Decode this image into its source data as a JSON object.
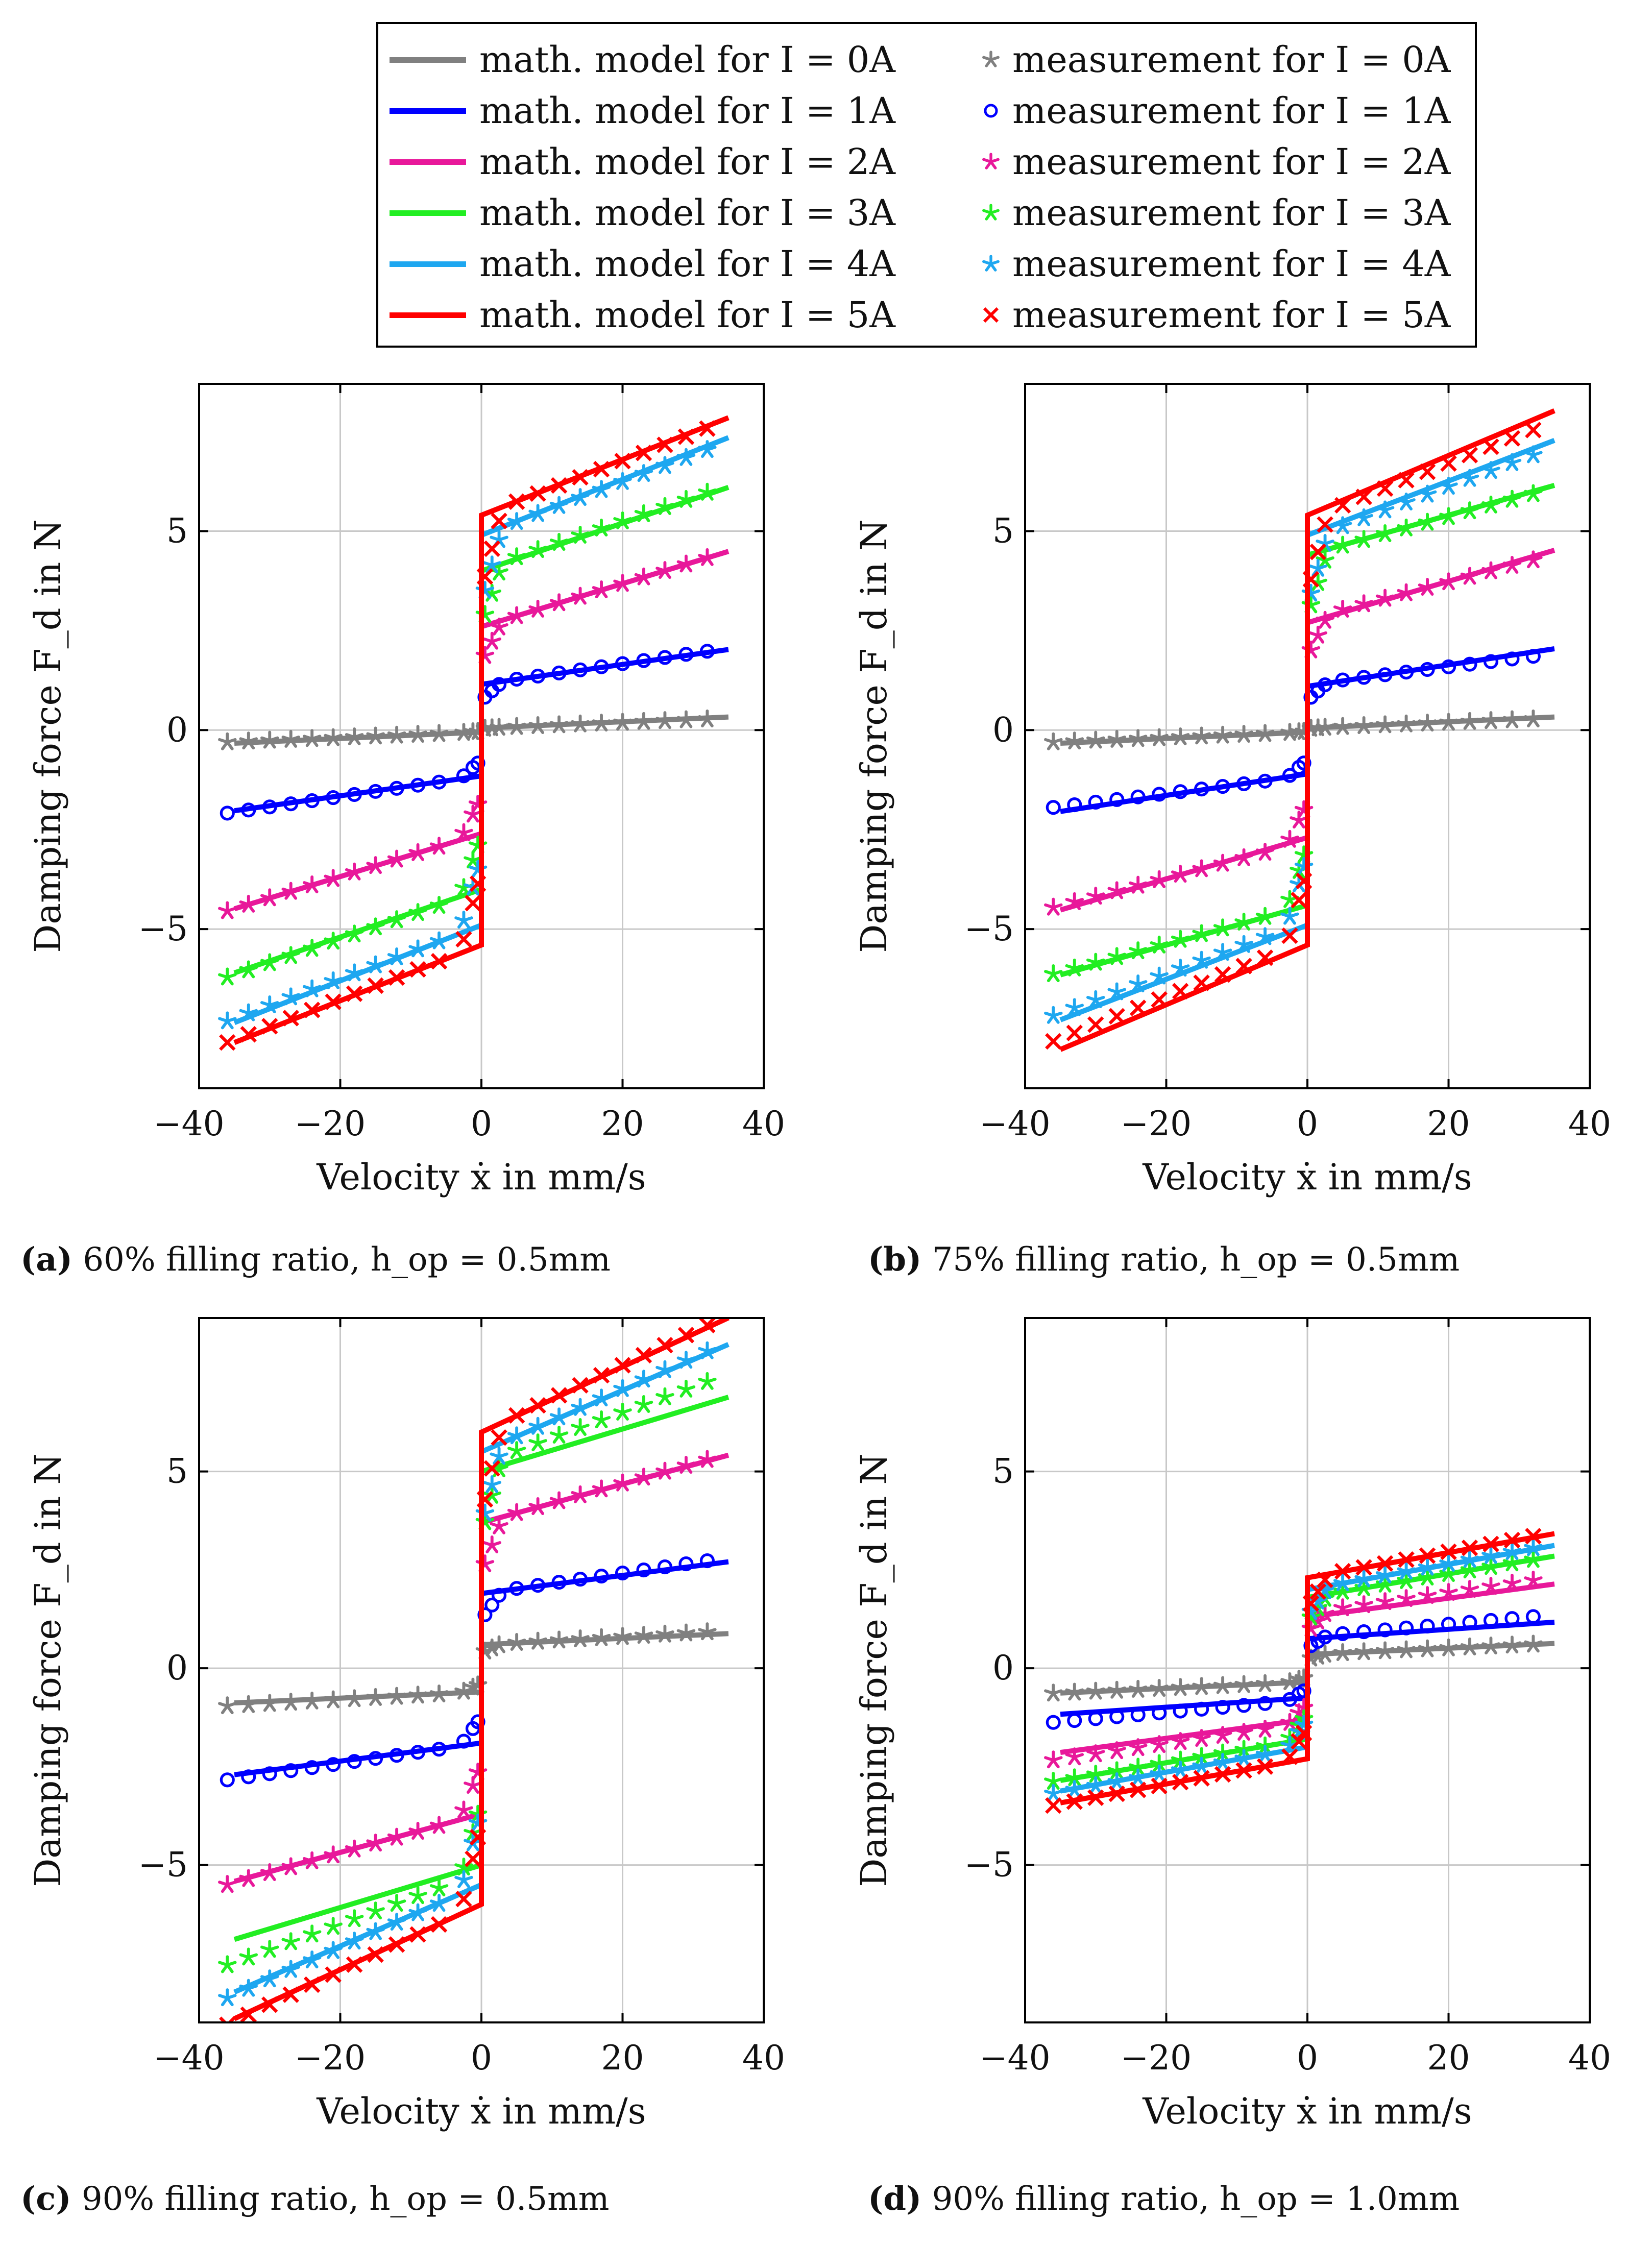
{
  "legend": {
    "entries": [
      {
        "model_label": "math. model for I = 0A",
        "meas_label": "measurement for I = 0A",
        "color": "#808080",
        "marker": "star"
      },
      {
        "model_label": "math. model for I = 1A",
        "meas_label": "measurement for I = 1A",
        "color": "#0000ff",
        "marker": "circle"
      },
      {
        "model_label": "math. model for I = 2A",
        "meas_label": "measurement for I = 2A",
        "color": "#e8189a",
        "marker": "star"
      },
      {
        "model_label": "math. model for I = 3A",
        "meas_label": "measurement for I = 3A",
        "color": "#22ee22",
        "marker": "star"
      },
      {
        "model_label": "math. model for I = 4A",
        "meas_label": "measurement for I = 4A",
        "color": "#1ea7f0",
        "marker": "star"
      },
      {
        "model_label": "math. model for I = 5A",
        "meas_label": "measurement for I = 5A",
        "color": "#ff0000",
        "marker": "cross"
      }
    ]
  },
  "chart_data": [
    {
      "type": "line",
      "panel": "a",
      "caption_letter": "(a)",
      "caption": "60% filling ratio, h_op = 0.5mm",
      "xlabel": "Velocity ẋ in mm/s",
      "ylabel": "Damping force F_d in N",
      "xlim": [
        -40,
        40
      ],
      "ylim": [
        -9,
        8.7
      ],
      "xticks": [
        -40,
        -20,
        0,
        20,
        40
      ],
      "yticks": [
        -5,
        0,
        5
      ],
      "grid": true,
      "series": [
        {
          "name": "I = 0A",
          "current": 0,
          "model": {
            "offset": 0.05,
            "slope": 0.008
          },
          "measurement": {
            "offset": 0.05,
            "slope": 0.007
          }
        },
        {
          "name": "I = 1A",
          "current": 1,
          "model": {
            "offset": 1.15,
            "slope": 0.025
          },
          "measurement": {
            "offset": 1.15,
            "slope": 0.026
          }
        },
        {
          "name": "I = 2A",
          "current": 2,
          "model": {
            "offset": 2.6,
            "slope": 0.054
          },
          "measurement": {
            "offset": 2.6,
            "slope": 0.054
          }
        },
        {
          "name": "I = 3A",
          "current": 3,
          "model": {
            "offset": 4.0,
            "slope": 0.06
          },
          "measurement": {
            "offset": 4.05,
            "slope": 0.06
          }
        },
        {
          "name": "I = 4A",
          "current": 4,
          "model": {
            "offset": 4.9,
            "slope": 0.07
          },
          "measurement": {
            "offset": 4.9,
            "slope": 0.067
          }
        },
        {
          "name": "I = 5A",
          "current": 5,
          "model": {
            "offset": 5.4,
            "slope": 0.07
          },
          "measurement": {
            "offset": 5.4,
            "slope": 0.068
          }
        }
      ]
    },
    {
      "type": "line",
      "panel": "b",
      "caption_letter": "(b)",
      "caption": "75% filling ratio, h_op = 0.5mm",
      "xlabel": "Velocity ẋ in mm/s",
      "ylabel": "Damping force F_d in N",
      "xlim": [
        -40,
        40
      ],
      "ylim": [
        -9,
        8.7
      ],
      "xticks": [
        -40,
        -20,
        0,
        20,
        40
      ],
      "yticks": [
        -5,
        0,
        5
      ],
      "grid": true,
      "series": [
        {
          "name": "I = 0A",
          "current": 0,
          "model": {
            "offset": 0.05,
            "slope": 0.008
          },
          "measurement": {
            "offset": 0.05,
            "slope": 0.007
          }
        },
        {
          "name": "I = 1A",
          "current": 1,
          "model": {
            "offset": 1.1,
            "slope": 0.027
          },
          "measurement": {
            "offset": 1.15,
            "slope": 0.022
          }
        },
        {
          "name": "I = 2A",
          "current": 2,
          "model": {
            "offset": 2.7,
            "slope": 0.052
          },
          "measurement": {
            "offset": 2.8,
            "slope": 0.046
          }
        },
        {
          "name": "I = 3A",
          "current": 3,
          "model": {
            "offset": 4.4,
            "slope": 0.05
          },
          "measurement": {
            "offset": 4.4,
            "slope": 0.048
          }
        },
        {
          "name": "I = 4A",
          "current": 4,
          "model": {
            "offset": 4.9,
            "slope": 0.068
          },
          "measurement": {
            "offset": 4.8,
            "slope": 0.066
          }
        },
        {
          "name": "I = 5A",
          "current": 5,
          "model": {
            "offset": 5.4,
            "slope": 0.075
          },
          "measurement": {
            "offset": 5.3,
            "slope": 0.07
          }
        }
      ]
    },
    {
      "type": "line",
      "panel": "c",
      "caption_letter": "(c)",
      "caption": "90% filling ratio, h_op = 0.5mm",
      "xlabel": "Velocity ẋ in mm/s",
      "ylabel": "Damping force F_d in N",
      "xlim": [
        -40,
        40
      ],
      "ylim": [
        -9,
        8.9
      ],
      "xticks": [
        -40,
        -20,
        0,
        20,
        40
      ],
      "yticks": [
        -5,
        0,
        5
      ],
      "grid": true,
      "series": [
        {
          "name": "I = 0A",
          "current": 0,
          "model": {
            "offset": 0.6,
            "slope": 0.008
          },
          "measurement": {
            "offset": 0.6,
            "slope": 0.01
          }
        },
        {
          "name": "I = 1A",
          "current": 1,
          "model": {
            "offset": 1.9,
            "slope": 0.023
          },
          "measurement": {
            "offset": 1.9,
            "slope": 0.026
          }
        },
        {
          "name": "I = 2A",
          "current": 2,
          "model": {
            "offset": 3.7,
            "slope": 0.049
          },
          "measurement": {
            "offset": 3.7,
            "slope": 0.05
          }
        },
        {
          "name": "I = 3A",
          "current": 3,
          "model": {
            "offset": 5.0,
            "slope": 0.054
          },
          "measurement": {
            "offset": 5.2,
            "slope": 0.065
          }
        },
        {
          "name": "I = 4A",
          "current": 4,
          "model": {
            "offset": 5.5,
            "slope": 0.078
          },
          "measurement": {
            "offset": 5.5,
            "slope": 0.08
          }
        },
        {
          "name": "I = 5A",
          "current": 5,
          "model": {
            "offset": 6.0,
            "slope": 0.083
          },
          "measurement": {
            "offset": 6.0,
            "slope": 0.085
          }
        }
      ]
    },
    {
      "type": "line",
      "panel": "d",
      "caption_letter": "(d)",
      "caption": "90% filling ratio, h_op = 1.0mm",
      "xlabel": "Velocity ẋ in mm/s",
      "ylabel": "Damping force F_d in N",
      "xlim": [
        -40,
        40
      ],
      "ylim": [
        -9,
        8.9
      ],
      "xticks": [
        -40,
        -20,
        0,
        20,
        40
      ],
      "yticks": [
        -5,
        0,
        5
      ],
      "grid": true,
      "series": [
        {
          "name": "I = 0A",
          "current": 0,
          "model": {
            "offset": 0.35,
            "slope": 0.008
          },
          "measurement": {
            "offset": 0.35,
            "slope": 0.008
          }
        },
        {
          "name": "I = 1A",
          "current": 1,
          "model": {
            "offset": 0.75,
            "slope": 0.012
          },
          "measurement": {
            "offset": 0.8,
            "slope": 0.016
          }
        },
        {
          "name": "I = 2A",
          "current": 2,
          "model": {
            "offset": 1.3,
            "slope": 0.024
          },
          "measurement": {
            "offset": 1.4,
            "slope": 0.026
          }
        },
        {
          "name": "I = 3A",
          "current": 3,
          "model": {
            "offset": 1.8,
            "slope": 0.03
          },
          "measurement": {
            "offset": 1.8,
            "slope": 0.03
          }
        },
        {
          "name": "I = 4A",
          "current": 4,
          "model": {
            "offset": 2.0,
            "slope": 0.032
          },
          "measurement": {
            "offset": 2.0,
            "slope": 0.033
          }
        },
        {
          "name": "I = 5A",
          "current": 5,
          "model": {
            "offset": 2.3,
            "slope": 0.032
          },
          "measurement": {
            "offset": 2.3,
            "slope": 0.033
          }
        }
      ]
    }
  ]
}
